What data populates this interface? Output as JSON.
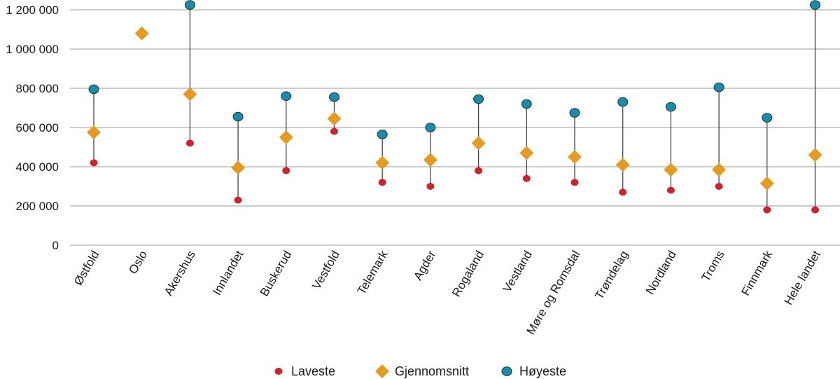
{
  "chart_data": {
    "type": "scatter",
    "title": "",
    "xlabel": "",
    "ylabel": "",
    "ylim": [
      0,
      1200000
    ],
    "yticks": [
      0,
      200000,
      400000,
      600000,
      800000,
      1000000,
      1200000
    ],
    "ytick_labels": [
      "0",
      "200 000",
      "400 000",
      "600 000",
      "800 000",
      "1 000 000",
      "1 200 000"
    ],
    "grid": true,
    "legend_position": "bottom",
    "categories": [
      "Østfold",
      "Oslo",
      "Akershus",
      "Innlandet",
      "Buskerud",
      "Vestfold",
      "Telemark",
      "Agder",
      "Rogaland",
      "Vestland",
      "Møre og Romsdal",
      "Trøndelag",
      "Nordland",
      "Troms",
      "Finnmark",
      "Hele landet"
    ],
    "series": [
      {
        "name": "Laveste",
        "marker": "circle-small",
        "color": "#c8262c",
        "values": [
          420000,
          null,
          520000,
          230000,
          380000,
          580000,
          320000,
          300000,
          380000,
          340000,
          320000,
          270000,
          280000,
          300000,
          180000,
          180000
        ]
      },
      {
        "name": "Gjennomsnitt",
        "marker": "diamond",
        "color": "#e39b26",
        "values": [
          575000,
          1080000,
          770000,
          395000,
          550000,
          645000,
          420000,
          435000,
          520000,
          470000,
          450000,
          410000,
          385000,
          385000,
          315000,
          460000
        ]
      },
      {
        "name": "Høyeste",
        "marker": "circle",
        "color": "#1f8aa6",
        "values": [
          795000,
          null,
          1225000,
          655000,
          760000,
          755000,
          565000,
          600000,
          745000,
          720000,
          675000,
          730000,
          705000,
          805000,
          650000,
          1225000
        ]
      }
    ],
    "range_line_color": "#444444"
  }
}
